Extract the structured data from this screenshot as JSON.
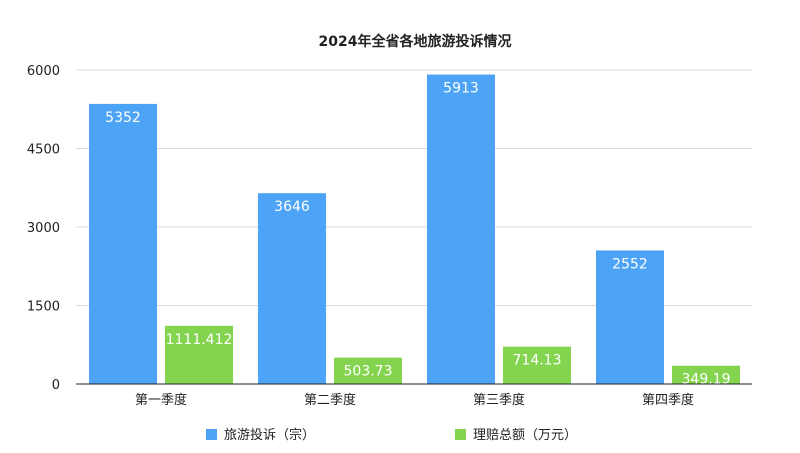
{
  "chart_data": {
    "type": "bar",
    "title": "2024年全省各地旅游投诉情况",
    "categories": [
      "第一季度",
      "第二季度",
      "第三季度",
      "第四季度"
    ],
    "series": [
      {
        "name": "旅游投诉（宗）",
        "values": [
          5352,
          3646,
          5913,
          2552
        ],
        "labels": [
          "5352",
          "3646",
          "5913",
          "2552"
        ],
        "color": "#4da3f5"
      },
      {
        "name": "理赔总额（万元）",
        "values": [
          1111.412,
          503.73,
          714.13,
          349.19
        ],
        "labels": [
          "1111.412",
          "503.73",
          "714.13",
          "349.19"
        ],
        "color": "#85d44f"
      }
    ],
    "yticks": [
      "0",
      "1500",
      "3000",
      "4500",
      "6000"
    ],
    "ylim": [
      0,
      6000
    ],
    "grid": true,
    "legend_position": "bottom"
  }
}
